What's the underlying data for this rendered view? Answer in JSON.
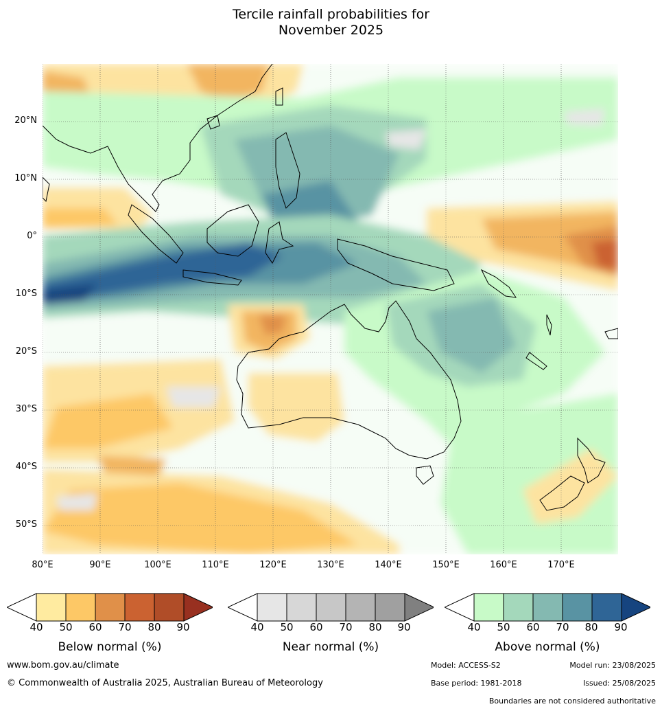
{
  "title": {
    "line1": "Tercile rainfall probabilities for",
    "line2": "November 2025"
  },
  "map": {
    "lat_labels": [
      "20°N",
      "10°N",
      "0°",
      "10°S",
      "20°S",
      "30°S",
      "40°S",
      "50°S"
    ],
    "lon_labels": [
      "80°E",
      "90°E",
      "100°E",
      "110°E",
      "120°E",
      "130°E",
      "140°E",
      "150°E",
      "160°E",
      "170°E"
    ],
    "ocean_color": "#ffffff",
    "coast_color": "#000000"
  },
  "legends": {
    "below": {
      "title": "Below normal (%)",
      "ticks": [
        "40",
        "50",
        "60",
        "70",
        "80",
        "90"
      ],
      "colors": [
        "#ffffff",
        "#ffeba0",
        "#fdc866",
        "#e09049",
        "#cb6231",
        "#b04d28",
        "#983020"
      ]
    },
    "near": {
      "title": "Near normal (%)",
      "ticks": [
        "40",
        "50",
        "60",
        "70",
        "80",
        "90"
      ],
      "colors": [
        "#ffffff",
        "#e6e6e6",
        "#d7d7d7",
        "#c7c7c7",
        "#b4b4b4",
        "#a0a0a0",
        "#808080"
      ]
    },
    "above": {
      "title": "Above normal (%)",
      "ticks": [
        "40",
        "50",
        "60",
        "70",
        "80",
        "90"
      ],
      "colors": [
        "#ffffff",
        "#c8fac8",
        "#a4d8bb",
        "#84b9b1",
        "#5993a3",
        "#2f6596",
        "#16447f"
      ]
    }
  },
  "footer": {
    "url": "www.bom.gov.au/climate",
    "copyright": "© Commonwealth of Australia 2025, Australian Bureau of Meteorology",
    "model": "Model: ACCESS-S2",
    "model_run": "Model run: 23/08/2025",
    "base_period": "Base period: 1981-2018",
    "issued": "Issued: 25/08/2025",
    "disclaimer": "Boundaries are not considered authoritative"
  }
}
